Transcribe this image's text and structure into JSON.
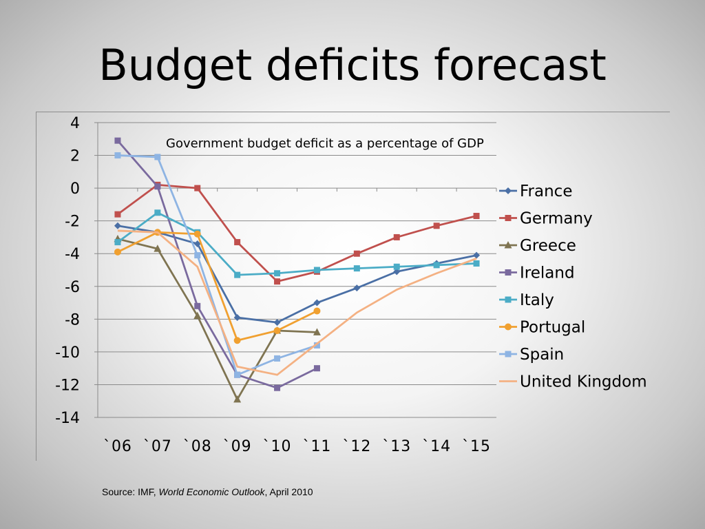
{
  "slide": {
    "title": "Budget deficits forecast",
    "source_prefix": "Source: IMF, ",
    "source_publication": "World Economic Outlook",
    "source_suffix": ", April 2010"
  },
  "chart_data": {
    "type": "line",
    "title": "Government budget deficit as a percentage of GDP",
    "xlabel": "",
    "ylabel": "",
    "categories": [
      "`06",
      "`07",
      "`08",
      "`09",
      "`10",
      "`11",
      "`12",
      "`13",
      "`14",
      "`15"
    ],
    "ylim": [
      -14,
      4
    ],
    "yticks": [
      4,
      2,
      0,
      -2,
      -4,
      -6,
      -8,
      -10,
      -12,
      -14
    ],
    "ytick_labels": [
      "4",
      "2",
      "0",
      "-2",
      "-4",
      "-6",
      "-8",
      "-10",
      "-12",
      "-14"
    ],
    "grid": true,
    "legend": "right",
    "series": [
      {
        "name": "France",
        "color": "#4a6fa5",
        "marker": "diamond",
        "values": [
          -2.3,
          -2.7,
          -3.4,
          -7.9,
          -8.2,
          -7.0,
          -6.1,
          -5.1,
          -4.6,
          -4.1
        ]
      },
      {
        "name": "Germany",
        "color": "#c0504d",
        "marker": "square",
        "values": [
          -1.6,
          0.2,
          0.0,
          -3.3,
          -5.7,
          -5.1,
          -4.0,
          -3.0,
          -2.3,
          -1.7
        ]
      },
      {
        "name": "Greece",
        "color": "#7f7451",
        "marker": "triangle",
        "values": [
          -3.1,
          -3.7,
          -7.8,
          -12.9,
          -8.7,
          -8.8,
          null,
          null,
          null,
          null
        ]
      },
      {
        "name": "Ireland",
        "color": "#7a6a9e",
        "marker": "square",
        "values": [
          2.9,
          0.1,
          -7.2,
          -11.4,
          -12.2,
          -11.0,
          null,
          null,
          null,
          null
        ]
      },
      {
        "name": "Italy",
        "color": "#4bacc6",
        "marker": "square",
        "values": [
          -3.3,
          -1.5,
          -2.7,
          -5.3,
          -5.2,
          -5.0,
          -4.9,
          -4.8,
          -4.7,
          -4.6
        ]
      },
      {
        "name": "Portugal",
        "color": "#f0a030",
        "marker": "circle",
        "values": [
          -3.9,
          -2.7,
          -2.8,
          -9.3,
          -8.7,
          -7.5,
          null,
          null,
          null,
          null
        ]
      },
      {
        "name": "Spain",
        "color": "#8eb4e3",
        "marker": "square",
        "values": [
          2.0,
          1.9,
          -4.1,
          -11.4,
          -10.4,
          -9.6,
          null,
          null,
          null,
          null
        ]
      },
      {
        "name": "United Kingdom",
        "color": "#f4b183",
        "marker": "none",
        "values": [
          -2.6,
          -2.7,
          -4.8,
          -10.9,
          -11.4,
          -9.5,
          -7.6,
          -6.2,
          -5.2,
          -4.3
        ]
      }
    ]
  }
}
